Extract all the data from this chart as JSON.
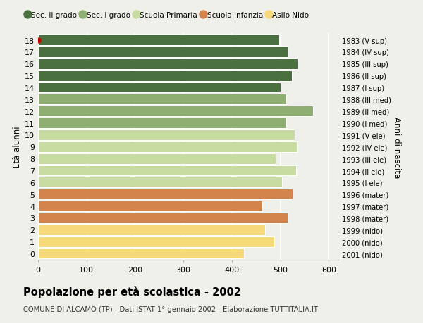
{
  "ages": [
    0,
    1,
    2,
    3,
    4,
    5,
    6,
    7,
    8,
    9,
    10,
    11,
    12,
    13,
    14,
    15,
    16,
    17,
    18
  ],
  "values": [
    425,
    487,
    468,
    515,
    463,
    525,
    503,
    533,
    490,
    534,
    530,
    512,
    567,
    512,
    500,
    524,
    535,
    515,
    498
  ],
  "right_labels": [
    "2001 (nido)",
    "2000 (nido)",
    "1999 (nido)",
    "1998 (mater)",
    "1997 (mater)",
    "1996 (mater)",
    "1995 (I ele)",
    "1994 (II ele)",
    "1993 (III ele)",
    "1992 (IV ele)",
    "1991 (V ele)",
    "1990 (I med)",
    "1989 (II med)",
    "1988 (III med)",
    "1987 (I sup)",
    "1986 (II sup)",
    "1985 (III sup)",
    "1984 (IV sup)",
    "1983 (V sup)"
  ],
  "colors": [
    "#f5d97a",
    "#f5d97a",
    "#f5d97a",
    "#d2844c",
    "#d2844c",
    "#d2844c",
    "#c8dba0",
    "#c8dba0",
    "#c8dba0",
    "#c8dba0",
    "#c8dba0",
    "#8faf72",
    "#8faf72",
    "#8faf72",
    "#4a7040",
    "#4a7040",
    "#4a7040",
    "#4a7040",
    "#4a7040"
  ],
  "legend_labels": [
    "Sec. II grado",
    "Sec. I grado",
    "Scuola Primaria",
    "Scuola Infanzia",
    "Asilo Nido"
  ],
  "legend_colors": [
    "#4a7040",
    "#8faf72",
    "#c8dba0",
    "#d2844c",
    "#f5d97a"
  ],
  "ylabel": "Età alunni",
  "right_ylabel": "Anni di nascita",
  "title": "Popolazione per età scolastica - 2002",
  "subtitle": "COMUNE DI ALCAMO (TP) - Dati ISTAT 1° gennaio 2002 - Elaborazione TUTTITALIA.IT",
  "xlim": [
    0,
    620
  ],
  "xticks": [
    0,
    100,
    200,
    300,
    400,
    500,
    600
  ],
  "background_color": "#f0f0eb",
  "grid_color": "#ffffff",
  "dot_color": "#cc0000",
  "dot_age": 18
}
